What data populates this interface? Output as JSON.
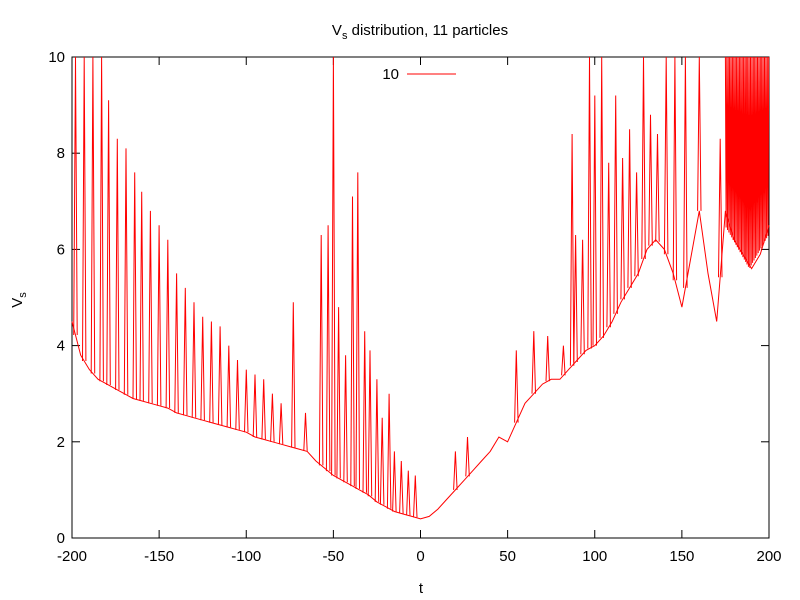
{
  "chart_data": {
    "type": "line",
    "title_main": "V",
    "title_sub": "s",
    "title_rest": " distribution, 11 particles",
    "xlabel": "t",
    "ylabel_main": "V",
    "ylabel_sub": "s",
    "xlim": [
      -200,
      200
    ],
    "ylim": [
      0,
      10
    ],
    "x_ticks": [
      -200,
      -150,
      -100,
      -50,
      0,
      50,
      100,
      150,
      200
    ],
    "y_ticks": [
      0,
      2,
      4,
      6,
      8,
      10
    ],
    "grid": false,
    "legend_position": "top-center",
    "series": [
      {
        "name": "10",
        "color": "#ff0000",
        "x": [
          -200,
          -195,
          -190,
          -185,
          -180,
          -175,
          -170,
          -165,
          -160,
          -155,
          -150,
          -145,
          -140,
          -135,
          -130,
          -125,
          -120,
          -115,
          -110,
          -105,
          -100,
          -95,
          -90,
          -85,
          -80,
          -75,
          -70,
          -65,
          -60,
          -55,
          -50,
          -45,
          -40,
          -35,
          -30,
          -25,
          -20,
          -15,
          -10,
          -5,
          0,
          5,
          10,
          15,
          20,
          25,
          30,
          35,
          40,
          45,
          50,
          55,
          60,
          65,
          70,
          75,
          80,
          85,
          90,
          95,
          100,
          105,
          110,
          115,
          120,
          125,
          130,
          135,
          140,
          145,
          150,
          155,
          160,
          165,
          170,
          175,
          180,
          185,
          190,
          195,
          200
        ],
        "y": [
          4.5,
          3.8,
          3.5,
          3.3,
          3.2,
          3.1,
          3.0,
          2.9,
          2.85,
          2.8,
          2.75,
          2.7,
          2.6,
          2.55,
          2.5,
          2.45,
          2.4,
          2.35,
          2.3,
          2.25,
          2.2,
          2.1,
          2.05,
          2.0,
          1.95,
          1.9,
          1.85,
          1.8,
          1.6,
          1.45,
          1.3,
          1.2,
          1.1,
          1.0,
          0.9,
          0.75,
          0.65,
          0.55,
          0.5,
          0.45,
          0.4,
          0.45,
          0.6,
          0.8,
          1.0,
          1.2,
          1.4,
          1.6,
          1.8,
          2.1,
          2.0,
          2.4,
          2.8,
          3.0,
          3.2,
          3.3,
          3.3,
          3.5,
          3.7,
          3.9,
          4.0,
          4.2,
          4.5,
          4.9,
          5.2,
          5.5,
          6.0,
          6.2,
          6.0,
          5.5,
          4.8,
          5.8,
          6.8,
          5.5,
          4.5,
          6.8,
          6.2,
          5.9,
          5.6,
          5.9,
          6.5
        ],
        "spikes": [
          {
            "x": -198,
            "y": 10
          },
          {
            "x": -193,
            "y": 10
          },
          {
            "x": -188,
            "y": 10
          },
          {
            "x": -183,
            "y": 10
          },
          {
            "x": -179,
            "y": 9.1
          },
          {
            "x": -174,
            "y": 8.3
          },
          {
            "x": -169,
            "y": 8.1
          },
          {
            "x": -164,
            "y": 7.6
          },
          {
            "x": -160,
            "y": 7.2
          },
          {
            "x": -155,
            "y": 6.8
          },
          {
            "x": -150,
            "y": 6.5
          },
          {
            "x": -145,
            "y": 6.2
          },
          {
            "x": -140,
            "y": 5.5
          },
          {
            "x": -135,
            "y": 5.2
          },
          {
            "x": -130,
            "y": 4.9
          },
          {
            "x": -125,
            "y": 4.6
          },
          {
            "x": -120,
            "y": 4.5
          },
          {
            "x": -115,
            "y": 4.4
          },
          {
            "x": -110,
            "y": 4.0
          },
          {
            "x": -105,
            "y": 3.7
          },
          {
            "x": -100,
            "y": 3.5
          },
          {
            "x": -95,
            "y": 3.4
          },
          {
            "x": -90,
            "y": 3.3
          },
          {
            "x": -85,
            "y": 3.0
          },
          {
            "x": -80,
            "y": 2.8
          },
          {
            "x": -73,
            "y": 4.9
          },
          {
            "x": -66,
            "y": 2.6
          },
          {
            "x": -57,
            "y": 6.3
          },
          {
            "x": -53,
            "y": 6.5
          },
          {
            "x": -50,
            "y": 10
          },
          {
            "x": -47,
            "y": 4.8
          },
          {
            "x": -43,
            "y": 3.8
          },
          {
            "x": -39,
            "y": 7.1
          },
          {
            "x": -36,
            "y": 7.6
          },
          {
            "x": -32,
            "y": 4.3
          },
          {
            "x": -29,
            "y": 3.9
          },
          {
            "x": -25,
            "y": 3.3
          },
          {
            "x": -22,
            "y": 2.5
          },
          {
            "x": -18,
            "y": 3.0
          },
          {
            "x": -15,
            "y": 1.8
          },
          {
            "x": -11,
            "y": 1.6
          },
          {
            "x": -7,
            "y": 1.4
          },
          {
            "x": -3,
            "y": 1.3
          },
          {
            "x": 20,
            "y": 1.8
          },
          {
            "x": 27,
            "y": 2.1
          },
          {
            "x": 55,
            "y": 3.9
          },
          {
            "x": 65,
            "y": 4.3
          },
          {
            "x": 73,
            "y": 4.2
          },
          {
            "x": 82,
            "y": 4.0
          },
          {
            "x": 87,
            "y": 8.4
          },
          {
            "x": 89,
            "y": 6.3
          },
          {
            "x": 93,
            "y": 6.2
          },
          {
            "x": 97,
            "y": 10
          },
          {
            "x": 100,
            "y": 9.2
          },
          {
            "x": 104,
            "y": 10
          },
          {
            "x": 108,
            "y": 7.8
          },
          {
            "x": 112,
            "y": 9.2
          },
          {
            "x": 116,
            "y": 7.9
          },
          {
            "x": 120,
            "y": 8.5
          },
          {
            "x": 124,
            "y": 7.6
          },
          {
            "x": 128,
            "y": 10
          },
          {
            "x": 132,
            "y": 8.8
          },
          {
            "x": 136,
            "y": 8.4
          },
          {
            "x": 141,
            "y": 10
          },
          {
            "x": 146,
            "y": 10
          },
          {
            "x": 152,
            "y": 10
          },
          {
            "x": 160,
            "y": 10
          },
          {
            "x": 172,
            "y": 8.3
          }
        ],
        "dense_region": {
          "x_start": 175,
          "x_end": 200,
          "y_low": 5.6,
          "y_high": 10
        }
      }
    ]
  }
}
